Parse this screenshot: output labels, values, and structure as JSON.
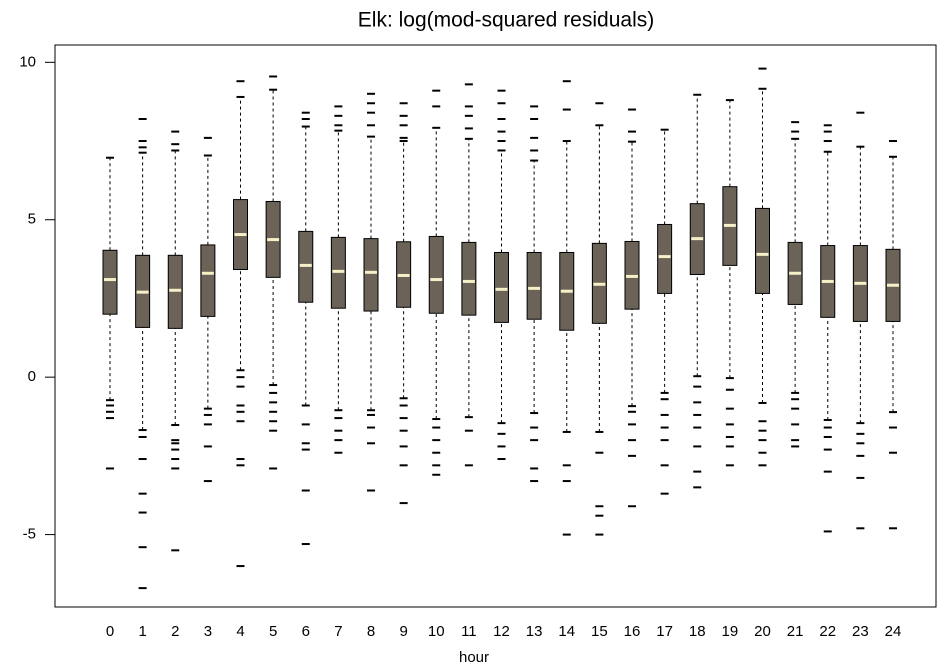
{
  "chart_data": {
    "type": "box",
    "title": "Elk: log(mod-squared residuals)",
    "x_label": "hour",
    "categories": [
      "0",
      "1",
      "2",
      "3",
      "4",
      "5",
      "6",
      "7",
      "8",
      "9",
      "10",
      "11",
      "12",
      "13",
      "14",
      "15",
      "16",
      "17",
      "18",
      "19",
      "20",
      "21",
      "22",
      "23",
      "24"
    ],
    "ylim": [
      -7.3,
      10.55
    ],
    "yticks": [
      -5,
      0,
      5,
      10
    ],
    "box_color": "#6b6357",
    "median_color": "#f5f0c8",
    "boxes": [
      {
        "low": -0.73,
        "q1": 2.0,
        "median": 3.1,
        "q3": 4.03,
        "high": 6.97,
        "outliers": [
          -0.9,
          -1.1,
          -1.3,
          -2.9
        ]
      },
      {
        "low": -1.68,
        "q1": 1.58,
        "median": 2.7,
        "q3": 3.87,
        "high": 7.13,
        "outliers": [
          7.3,
          7.5,
          8.2,
          -1.9,
          -2.6,
          -3.7,
          -4.3,
          -5.4,
          -6.7
        ]
      },
      {
        "low": -1.52,
        "q1": 1.55,
        "median": 2.76,
        "q3": 3.87,
        "high": 7.2,
        "outliers": [
          7.4,
          7.8,
          -2.0,
          -2.1,
          -2.3,
          -2.6,
          -2.9,
          -5.5
        ]
      },
      {
        "low": -1.0,
        "q1": 1.93,
        "median": 3.3,
        "q3": 4.2,
        "high": 7.04,
        "outliers": [
          7.6,
          -1.2,
          -1.5,
          -2.2,
          -3.3
        ]
      },
      {
        "low": 0.22,
        "q1": 3.42,
        "median": 4.53,
        "q3": 5.64,
        "high": 8.9,
        "outliers": [
          9.4,
          0.0,
          -0.3,
          -0.9,
          -1.1,
          -1.4,
          -2.6,
          -2.8,
          -6.0
        ]
      },
      {
        "low": -0.25,
        "q1": 3.17,
        "median": 4.37,
        "q3": 5.58,
        "high": 9.13,
        "outliers": [
          9.55,
          -0.5,
          -0.8,
          -1.1,
          -1.4,
          -1.7,
          -2.9
        ]
      },
      {
        "low": -0.9,
        "q1": 2.38,
        "median": 3.55,
        "q3": 4.63,
        "high": 7.96,
        "outliers": [
          8.2,
          8.4,
          -1.5,
          -2.1,
          -2.3,
          -3.6,
          -5.3
        ]
      },
      {
        "low": -1.05,
        "q1": 2.19,
        "median": 3.36,
        "q3": 4.44,
        "high": 7.83,
        "outliers": [
          8.0,
          8.3,
          8.6,
          -1.3,
          -1.7,
          -2.0,
          -2.4
        ]
      },
      {
        "low": -1.05,
        "q1": 2.1,
        "median": 3.33,
        "q3": 4.4,
        "high": 7.64,
        "outliers": [
          8.0,
          8.4,
          8.7,
          9.0,
          -1.2,
          -1.6,
          -2.1,
          -3.6
        ]
      },
      {
        "low": -0.67,
        "q1": 2.22,
        "median": 3.23,
        "q3": 4.3,
        "high": 7.5,
        "outliers": [
          7.6,
          8.0,
          8.3,
          8.7,
          -0.9,
          -1.3,
          -1.7,
          -2.2,
          -2.8,
          -4.0
        ]
      },
      {
        "low": -1.33,
        "q1": 2.03,
        "median": 3.1,
        "q3": 4.47,
        "high": 7.92,
        "outliers": [
          8.6,
          9.1,
          -1.6,
          -2.0,
          -2.4,
          -2.8,
          -3.1
        ]
      },
      {
        "low": -1.27,
        "q1": 1.97,
        "median": 3.04,
        "q3": 4.28,
        "high": 7.57,
        "outliers": [
          7.9,
          8.3,
          8.6,
          9.3,
          -1.7,
          -2.8
        ]
      },
      {
        "low": -1.46,
        "q1": 1.74,
        "median": 2.79,
        "q3": 3.96,
        "high": 7.2,
        "outliers": [
          7.5,
          7.8,
          8.2,
          8.7,
          9.1,
          -1.8,
          -2.2,
          -2.6
        ]
      },
      {
        "low": -1.14,
        "q1": 1.84,
        "median": 2.82,
        "q3": 3.96,
        "high": 6.88,
        "outliers": [
          7.2,
          7.6,
          8.2,
          8.6,
          -1.6,
          -2.0,
          -2.9,
          -3.3
        ]
      },
      {
        "low": -1.74,
        "q1": 1.49,
        "median": 2.73,
        "q3": 3.96,
        "high": 7.5,
        "outliers": [
          8.5,
          9.4,
          -2.8,
          -3.3,
          -5.0
        ]
      },
      {
        "low": -1.74,
        "q1": 1.71,
        "median": 2.95,
        "q3": 4.25,
        "high": 8.0,
        "outliers": [
          8.7,
          -2.4,
          -4.1,
          -4.4,
          -5.0
        ]
      },
      {
        "low": -0.92,
        "q1": 2.16,
        "median": 3.2,
        "q3": 4.31,
        "high": 7.48,
        "outliers": [
          7.8,
          8.5,
          -1.1,
          -1.5,
          -2.0,
          -2.5,
          -4.1
        ]
      },
      {
        "low": -0.5,
        "q1": 2.66,
        "median": 3.83,
        "q3": 4.85,
        "high": 7.86,
        "outliers": [
          -0.7,
          -1.2,
          -1.6,
          -2.0,
          -2.8,
          -3.7
        ]
      },
      {
        "low": 0.03,
        "q1": 3.26,
        "median": 4.4,
        "q3": 5.51,
        "high": 8.97,
        "outliers": [
          -0.3,
          -0.8,
          -1.2,
          -1.6,
          -2.2,
          -3.0,
          -3.5
        ]
      },
      {
        "low": -0.03,
        "q1": 3.55,
        "median": 4.82,
        "q3": 6.05,
        "high": 8.8,
        "outliers": [
          -0.4,
          -1.0,
          -1.5,
          -1.9,
          -2.2,
          -2.8
        ]
      },
      {
        "low": -0.82,
        "q1": 2.66,
        "median": 3.9,
        "q3": 5.36,
        "high": 9.16,
        "outliers": [
          9.8,
          -1.4,
          -1.7,
          -2.0,
          -2.4,
          -2.8
        ]
      },
      {
        "low": -0.5,
        "q1": 2.31,
        "median": 3.3,
        "q3": 4.28,
        "high": 7.57,
        "outliers": [
          7.8,
          8.1,
          -0.7,
          -1.0,
          -1.5,
          -2.0,
          -2.2
        ]
      },
      {
        "low": -1.36,
        "q1": 1.9,
        "median": 3.04,
        "q3": 4.18,
        "high": 7.16,
        "outliers": [
          7.5,
          7.8,
          8.0,
          -1.6,
          -1.9,
          -2.3,
          -3.0,
          -4.9
        ]
      },
      {
        "low": -1.46,
        "q1": 1.77,
        "median": 2.98,
        "q3": 4.18,
        "high": 7.32,
        "outliers": [
          8.4,
          -1.8,
          -2.1,
          -2.5,
          -3.2,
          -4.8
        ]
      },
      {
        "low": -1.11,
        "q1": 1.77,
        "median": 2.92,
        "q3": 4.06,
        "high": 7.0,
        "outliers": [
          7.5,
          -1.6,
          -2.4,
          -4.8
        ]
      }
    ]
  }
}
